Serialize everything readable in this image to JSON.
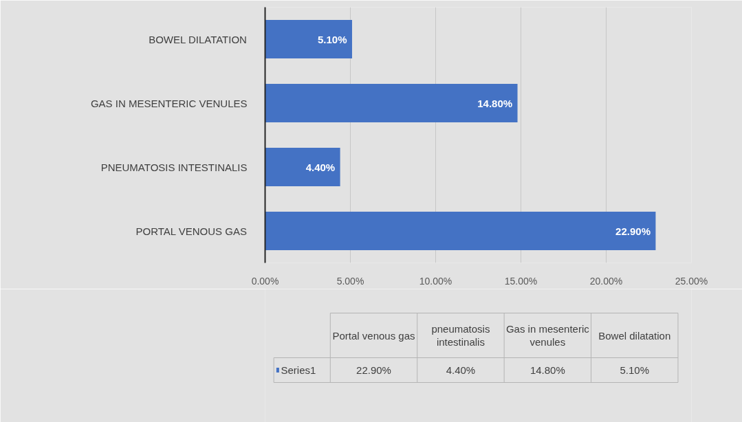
{
  "chart_data": {
    "type": "bar",
    "orientation": "horizontal",
    "categories": [
      "BOWEL DILATATION",
      "GAS IN MESENTERIC VENULES",
      "PNEUMATOSIS INTESTINALIS",
      "PORTAL VENOUS GAS"
    ],
    "series": [
      {
        "name": "Series1",
        "color": "#4472c4",
        "values": [
          5.1,
          14.8,
          4.4,
          22.9
        ],
        "value_labels": [
          "5.10%",
          "14.80%",
          "4.40%",
          "22.90%"
        ]
      }
    ],
    "xlim": [
      0,
      25
    ],
    "xticks": [
      {
        "value": 0,
        "label": "0.00%"
      },
      {
        "value": 5,
        "label": "5.00%"
      },
      {
        "value": 10,
        "label": "10.00%"
      },
      {
        "value": 15,
        "label": "15.00%"
      },
      {
        "value": 20,
        "label": "20.00%"
      },
      {
        "value": 25,
        "label": "25.00%"
      }
    ],
    "grid": "x",
    "legend": "bottom",
    "annotations": [
      "Portal venous gas",
      "pneumatosis intestinalis",
      "Gas in mesenteric venules",
      "Bowel dilatation"
    ]
  }
}
